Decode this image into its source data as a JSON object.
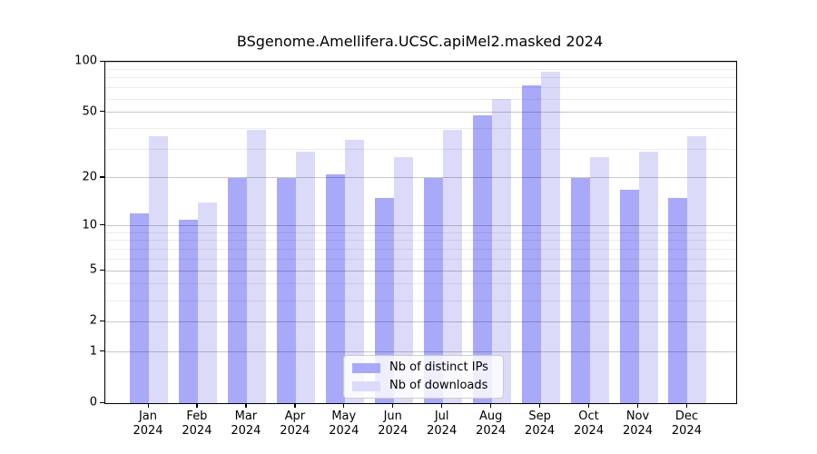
{
  "title": "BSgenome.Amellifera.UCSC.apiMel2.masked 2024",
  "chart_data": {
    "type": "bar",
    "title": "BSgenome.Amellifera.UCSC.apiMel2.masked 2024",
    "categories": [
      "Jan",
      "Feb",
      "Mar",
      "Apr",
      "May",
      "Jun",
      "Jul",
      "Aug",
      "Sep",
      "Oct",
      "Nov",
      "Dec"
    ],
    "year_label": "2024",
    "series": [
      {
        "name": "Nb of distinct IPs",
        "color": "#a9a9fa",
        "values": [
          12,
          11,
          20,
          20,
          21,
          15,
          20,
          48,
          72,
          20,
          17,
          15
        ]
      },
      {
        "name": "Nb of downloads",
        "color": "#dbdbf9",
        "values": [
          36,
          14,
          39,
          29,
          34,
          27,
          39,
          60,
          87,
          27,
          29,
          36
        ]
      }
    ],
    "yscale": "log1p",
    "ylim": [
      0,
      100
    ],
    "ytick_values": [
      0,
      1,
      2,
      5,
      10,
      20,
      50,
      100
    ],
    "ytick_labels": [
      "0",
      "1",
      "2",
      "5",
      "10",
      "20",
      "50",
      "100"
    ],
    "minor_gridlines": [
      3,
      4,
      6,
      7,
      8,
      9,
      30,
      40,
      60,
      70,
      80,
      90
    ],
    "grid": "on, drawn above bars",
    "legend_position": "bottom-center"
  },
  "legend": {
    "items": [
      {
        "label": "Nb of distinct IPs"
      },
      {
        "label": "Nb of downloads"
      }
    ]
  }
}
